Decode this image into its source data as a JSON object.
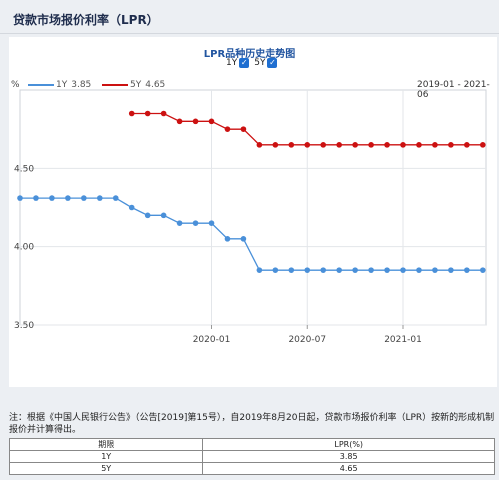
{
  "page": {
    "title": "贷款市场报价利率（LPR）"
  },
  "chart_header": {
    "title": "LPR品种历史走势图",
    "toggles": [
      {
        "label": "1Y",
        "checked": true,
        "check_glyph": "✓"
      },
      {
        "label": "5Y",
        "checked": true,
        "check_glyph": "✓"
      }
    ],
    "unit": "%",
    "date_range": "2019-01 - 2021-06"
  },
  "legend": [
    {
      "name": "1Y",
      "value": "3.85",
      "color": "#4a90d9"
    },
    {
      "name": "5Y",
      "value": "4.65",
      "color": "#cc1111"
    }
  ],
  "chart_data": {
    "type": "line",
    "title": "LPR品种历史走势图",
    "ylim": [
      3.5,
      5.0
    ],
    "yticks": [
      "3.50",
      "4.00",
      "4.50"
    ],
    "xticks": [
      "2020-01",
      "2020-07",
      "2021-01"
    ],
    "grid": true,
    "legend_position": "top-left",
    "x": [
      "2019-01",
      "2019-02",
      "2019-03",
      "2019-04",
      "2019-05",
      "2019-06",
      "2019-07",
      "2019-08",
      "2019-09",
      "2019-10",
      "2019-11",
      "2019-12",
      "2020-01",
      "2020-02",
      "2020-03",
      "2020-04",
      "2020-05",
      "2020-06",
      "2020-07",
      "2020-08",
      "2020-09",
      "2020-10",
      "2020-11",
      "2020-12",
      "2021-01",
      "2021-02",
      "2021-03",
      "2021-04",
      "2021-05",
      "2021-06"
    ],
    "series": [
      {
        "name": "1Y",
        "color": "#4a90d9",
        "values": [
          4.31,
          4.31,
          4.31,
          4.31,
          4.31,
          4.31,
          4.31,
          4.25,
          4.2,
          4.2,
          4.15,
          4.15,
          4.15,
          4.05,
          4.05,
          3.85,
          3.85,
          3.85,
          3.85,
          3.85,
          3.85,
          3.85,
          3.85,
          3.85,
          3.85,
          3.85,
          3.85,
          3.85,
          3.85,
          3.85
        ]
      },
      {
        "name": "5Y",
        "color": "#cc1111",
        "values": [
          null,
          null,
          null,
          null,
          null,
          null,
          null,
          4.85,
          4.85,
          4.85,
          4.8,
          4.8,
          4.8,
          4.75,
          4.75,
          4.65,
          4.65,
          4.65,
          4.65,
          4.65,
          4.65,
          4.65,
          4.65,
          4.65,
          4.65,
          4.65,
          4.65,
          4.65,
          4.65,
          4.65
        ]
      }
    ]
  },
  "note": "注：根据《中国人民银行公告》（公告[2019]第15号），自2019年8月20日起，贷款市场报价利率（LPR）按新的形成机制报价并计算得出。",
  "table": {
    "headers": [
      "期限",
      "LPR(%)"
    ],
    "rows": [
      [
        "1Y",
        "3.85"
      ],
      [
        "5Y",
        "4.65"
      ]
    ]
  }
}
